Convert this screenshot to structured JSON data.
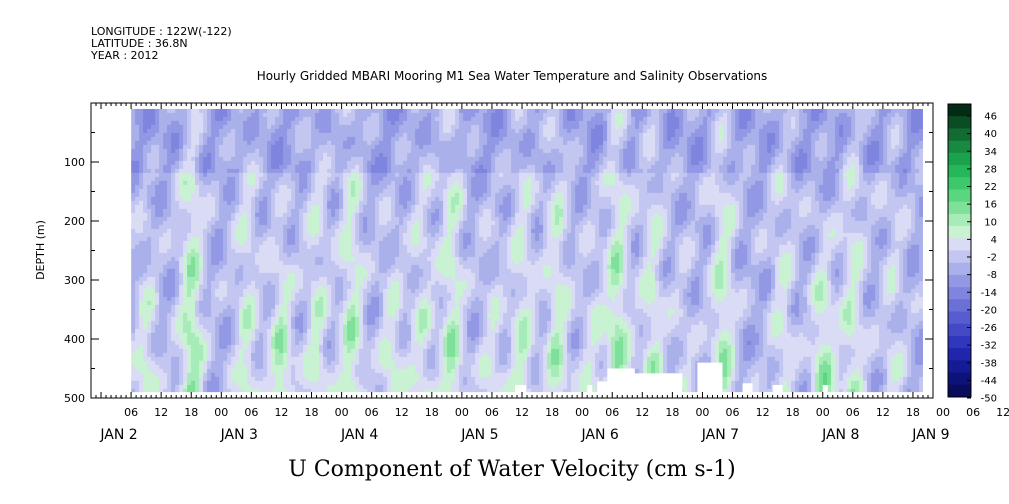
{
  "header": {
    "longitude": "LONGITUDE : 122W(-122)",
    "latitude": "LATITUDE : 36.8N",
    "year": "YEAR : 2012"
  },
  "chart_data": {
    "type": "heatmap",
    "title": "Hourly Gridded MBARI Mooring M1 Sea Water Temperature and Salinity Observations",
    "footer_title": "U Component of Water Velocity (cm s-1)",
    "ylabel": "DEPTH (m)",
    "y_inverted": true,
    "ylim": [
      0,
      500
    ],
    "data_depth_range": [
      10,
      490
    ],
    "y_ticks": [
      100,
      200,
      300,
      400,
      500
    ],
    "xlim_hours": [
      0,
      168
    ],
    "x_start": "JAN 1 2012 22:00",
    "x_hour_ticks": [
      "06",
      "12",
      "18",
      "00",
      "06",
      "12",
      "18",
      "00",
      "06",
      "12",
      "18",
      "00",
      "06",
      "12",
      "18",
      "00",
      "06",
      "12",
      "18",
      "00",
      "06",
      "12",
      "18",
      "00",
      "06",
      "12",
      "18",
      "00",
      "06",
      "12",
      "18",
      "00"
    ],
    "x_day_labels": [
      {
        "label": "JAN  2",
        "hour": 2
      },
      {
        "label": "JAN  3",
        "hour": 26
      },
      {
        "label": "JAN  4",
        "hour": 50
      },
      {
        "label": "JAN  5",
        "hour": 74
      },
      {
        "label": "JAN  6",
        "hour": 98
      },
      {
        "label": "JAN  7",
        "hour": 122
      },
      {
        "label": "JAN  8",
        "hour": 146
      },
      {
        "label": "JAN  9",
        "hour": 164
      }
    ],
    "colorbar": {
      "labels": [
        "46",
        "40",
        "34",
        "28",
        "22",
        "16",
        "10",
        "4",
        "-2",
        "-8",
        "-14",
        "-20",
        "-26",
        "-32",
        "-38",
        "-44",
        "-50"
      ],
      "range": [
        -50,
        49
      ],
      "colors": [
        "#032b15",
        "#0a4d24",
        "#116b32",
        "#178a40",
        "#1aa34c",
        "#24b85a",
        "#3dc96b",
        "#5ad67e",
        "#7fe09a",
        "#a6ebb8",
        "#c8f2d2",
        "#d9dcf4",
        "#c3c6f0",
        "#aab0ea",
        "#9398e4",
        "#7f85de",
        "#6a70d6",
        "#575dce",
        "#4449c6",
        "#3137bd",
        "#2026ac",
        "#151b95",
        "#0d1278",
        "#080c5a"
      ]
    }
  }
}
